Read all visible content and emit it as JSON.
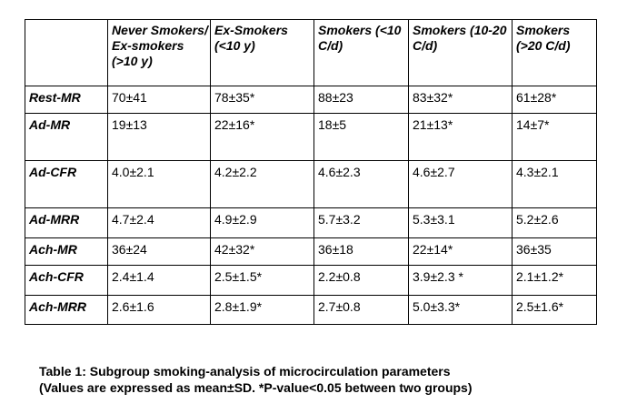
{
  "table": {
    "columns": [
      "",
      "Never Smokers/ Ex-smokers (>10 y)",
      "Ex-Smokers (<10 y)",
      "Smokers (<10 C/d)",
      "Smokers (10-20 C/d)",
      "Smokers (>20 C/d)"
    ],
    "rows": [
      {
        "label": "Rest-MR",
        "values": [
          "70±41",
          "78±35*",
          "88±23",
          "83±32*",
          "61±28*"
        ]
      },
      {
        "label": "Ad-MR",
        "values": [
          "19±13",
          "22±16*",
          "18±5",
          "21±13*",
          "14±7*"
        ]
      },
      {
        "label": "Ad-CFR",
        "values": [
          "4.0±2.1",
          "4.2±2.2",
          "4.6±2.3",
          "4.6±2.7",
          "4.3±2.1"
        ]
      },
      {
        "label": "Ad-MRR",
        "values": [
          "4.7±2.4",
          "4.9±2.9",
          "5.7±3.2",
          "5.3±3.1",
          "5.2±2.6"
        ]
      },
      {
        "label": "Ach-MR",
        "values": [
          "36±24",
          "42±32*",
          "36±18",
          "22±14*",
          "36±35"
        ]
      },
      {
        "label": "Ach-CFR",
        "values": [
          "2.4±1.4",
          "2.5±1.5*",
          "2.2±0.8",
          "3.9±2.3 *",
          "2.1±1.2*"
        ]
      },
      {
        "label": "Ach-MRR",
        "values": [
          "2.6±1.6",
          "2.8±1.9*",
          "2.7±0.8",
          "5.0±3.3*",
          "2.5±1.6*"
        ]
      }
    ]
  },
  "caption": {
    "line1": "Table 1: Subgroup smoking-analysis of microcirculation parameters",
    "line2": "(Values are expressed as mean±SD. *P-value<0.05 between two groups)"
  }
}
